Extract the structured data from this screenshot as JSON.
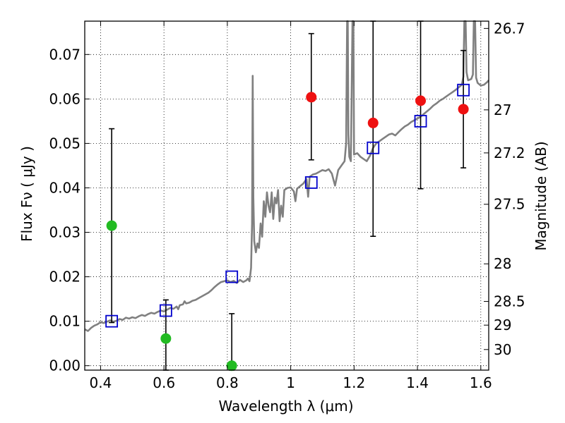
{
  "chart_data": {
    "type": "scatter",
    "xlabel": "Wavelength  λ (μm)",
    "ylabel": "Flux  Fν  ( μJy )",
    "y2label": "Magnitude (AB)",
    "xlim": [
      0.35,
      1.625
    ],
    "ylim": [
      -0.001,
      0.0775
    ],
    "grid": true,
    "x_ticks": [
      {
        "value": 0.4,
        "label": "0.4"
      },
      {
        "value": 0.6,
        "label": "0.6"
      },
      {
        "value": 0.8,
        "label": "0.8"
      },
      {
        "value": 1.0,
        "label": "1"
      },
      {
        "value": 1.2,
        "label": "1.2"
      },
      {
        "value": 1.4,
        "label": "1.4"
      },
      {
        "value": 1.6,
        "label": "1.6"
      }
    ],
    "y_ticks": [
      {
        "value": 0.0,
        "label": "0.00"
      },
      {
        "value": 0.01,
        "label": "0.01"
      },
      {
        "value": 0.02,
        "label": "0.02"
      },
      {
        "value": 0.03,
        "label": "0.03"
      },
      {
        "value": 0.04,
        "label": "0.04"
      },
      {
        "value": 0.05,
        "label": "0.05"
      },
      {
        "value": 0.06,
        "label": "0.06"
      },
      {
        "value": 0.07,
        "label": "0.07"
      }
    ],
    "y2_ticks": [
      {
        "magnitude": 26.7,
        "label": "26.7"
      },
      {
        "magnitude": 27.0,
        "label": "27"
      },
      {
        "magnitude": 27.2,
        "label": "27.2"
      },
      {
        "magnitude": 27.5,
        "label": "27.5"
      },
      {
        "magnitude": 28.0,
        "label": "28"
      },
      {
        "magnitude": 28.5,
        "label": "28.5"
      },
      {
        "magnitude": 29.0,
        "label": "29"
      },
      {
        "magnitude": 30.0,
        "label": "30"
      }
    ],
    "sed_model": {
      "color": "#808080",
      "points": [
        [
          0.35,
          0.0082
        ],
        [
          0.36,
          0.0078
        ],
        [
          0.37,
          0.0085
        ],
        [
          0.38,
          0.009
        ],
        [
          0.39,
          0.0093
        ],
        [
          0.4,
          0.0098
        ],
        [
          0.41,
          0.0096
        ],
        [
          0.42,
          0.0099
        ],
        [
          0.43,
          0.0102
        ],
        [
          0.44,
          0.0099
        ],
        [
          0.45,
          0.0101
        ],
        [
          0.46,
          0.0105
        ],
        [
          0.47,
          0.0103
        ],
        [
          0.48,
          0.0108
        ],
        [
          0.49,
          0.0106
        ],
        [
          0.5,
          0.0109
        ],
        [
          0.51,
          0.0107
        ],
        [
          0.52,
          0.0111
        ],
        [
          0.53,
          0.0114
        ],
        [
          0.54,
          0.0112
        ],
        [
          0.55,
          0.0116
        ],
        [
          0.56,
          0.0119
        ],
        [
          0.57,
          0.0117
        ],
        [
          0.58,
          0.0121
        ],
        [
          0.59,
          0.0124
        ],
        [
          0.6,
          0.0122
        ],
        [
          0.61,
          0.0126
        ],
        [
          0.62,
          0.013
        ],
        [
          0.63,
          0.0128
        ],
        [
          0.64,
          0.0133
        ],
        [
          0.645,
          0.0127
        ],
        [
          0.65,
          0.0136
        ],
        [
          0.66,
          0.0138
        ],
        [
          0.665,
          0.0145
        ],
        [
          0.67,
          0.014
        ],
        [
          0.68,
          0.0142
        ],
        [
          0.69,
          0.0146
        ],
        [
          0.7,
          0.0148
        ],
        [
          0.71,
          0.0152
        ],
        [
          0.72,
          0.0156
        ],
        [
          0.73,
          0.016
        ],
        [
          0.74,
          0.0164
        ],
        [
          0.75,
          0.017
        ],
        [
          0.76,
          0.0177
        ],
        [
          0.77,
          0.0183
        ],
        [
          0.78,
          0.0188
        ],
        [
          0.79,
          0.019
        ],
        [
          0.8,
          0.0192
        ],
        [
          0.81,
          0.0188
        ],
        [
          0.82,
          0.0191
        ],
        [
          0.83,
          0.0186
        ],
        [
          0.84,
          0.0193
        ],
        [
          0.85,
          0.0188
        ],
        [
          0.86,
          0.0192
        ],
        [
          0.865,
          0.0196
        ],
        [
          0.87,
          0.019
        ],
        [
          0.875,
          0.022
        ],
        [
          0.878,
          0.032
        ],
        [
          0.88,
          0.0652
        ],
        [
          0.882,
          0.038
        ],
        [
          0.885,
          0.028
        ],
        [
          0.89,
          0.0255
        ],
        [
          0.895,
          0.0275
        ],
        [
          0.9,
          0.0265
        ],
        [
          0.905,
          0.032
        ],
        [
          0.91,
          0.029
        ],
        [
          0.915,
          0.037
        ],
        [
          0.92,
          0.0335
        ],
        [
          0.925,
          0.039
        ],
        [
          0.93,
          0.036
        ],
        [
          0.935,
          0.0345
        ],
        [
          0.94,
          0.039
        ],
        [
          0.945,
          0.033
        ],
        [
          0.95,
          0.0378
        ],
        [
          0.955,
          0.0365
        ],
        [
          0.96,
          0.0395
        ],
        [
          0.965,
          0.0325
        ],
        [
          0.97,
          0.036
        ],
        [
          0.975,
          0.0335
        ],
        [
          0.98,
          0.0395
        ],
        [
          0.99,
          0.04
        ],
        [
          1.0,
          0.0401
        ],
        [
          1.01,
          0.0392
        ],
        [
          1.015,
          0.037
        ],
        [
          1.02,
          0.0398
        ],
        [
          1.03,
          0.0404
        ],
        [
          1.04,
          0.041
        ],
        [
          1.05,
          0.042
        ],
        [
          1.055,
          0.038
        ],
        [
          1.06,
          0.0425
        ],
        [
          1.07,
          0.043
        ],
        [
          1.08,
          0.0432
        ],
        [
          1.09,
          0.0436
        ],
        [
          1.1,
          0.044
        ],
        [
          1.11,
          0.0438
        ],
        [
          1.12,
          0.0442
        ],
        [
          1.13,
          0.0432
        ],
        [
          1.14,
          0.0405
        ],
        [
          1.15,
          0.044
        ],
        [
          1.16,
          0.045
        ],
        [
          1.17,
          0.046
        ],
        [
          1.175,
          0.05
        ],
        [
          1.178,
          0.0775
        ],
        [
          1.18,
          0.0775
        ],
        [
          1.182,
          0.052
        ],
        [
          1.185,
          0.047
        ],
        [
          1.19,
          0.046
        ],
        [
          1.195,
          0.0775
        ],
        [
          1.198,
          0.0775
        ],
        [
          1.2,
          0.0475
        ],
        [
          1.21,
          0.0478
        ],
        [
          1.22,
          0.047
        ],
        [
          1.23,
          0.0465
        ],
        [
          1.24,
          0.046
        ],
        [
          1.25,
          0.0472
        ],
        [
          1.26,
          0.049
        ],
        [
          1.27,
          0.05
        ],
        [
          1.28,
          0.0505
        ],
        [
          1.29,
          0.051
        ],
        [
          1.3,
          0.0515
        ],
        [
          1.31,
          0.052
        ],
        [
          1.32,
          0.0522
        ],
        [
          1.33,
          0.0518
        ],
        [
          1.34,
          0.0525
        ],
        [
          1.35,
          0.0532
        ],
        [
          1.36,
          0.0538
        ],
        [
          1.37,
          0.0542
        ],
        [
          1.38,
          0.0548
        ],
        [
          1.39,
          0.0552
        ],
        [
          1.4,
          0.0556
        ],
        [
          1.41,
          0.056
        ],
        [
          1.42,
          0.0566
        ],
        [
          1.43,
          0.0572
        ],
        [
          1.44,
          0.0578
        ],
        [
          1.45,
          0.0585
        ],
        [
          1.46,
          0.059
        ],
        [
          1.47,
          0.0596
        ],
        [
          1.48,
          0.06
        ],
        [
          1.49,
          0.0605
        ],
        [
          1.5,
          0.061
        ],
        [
          1.51,
          0.0615
        ],
        [
          1.52,
          0.062
        ],
        [
          1.53,
          0.0626
        ],
        [
          1.54,
          0.0632
        ],
        [
          1.545,
          0.065
        ],
        [
          1.548,
          0.0775
        ],
        [
          1.552,
          0.0775
        ],
        [
          1.555,
          0.066
        ],
        [
          1.56,
          0.0642
        ],
        [
          1.57,
          0.0645
        ],
        [
          1.575,
          0.0655
        ],
        [
          1.578,
          0.0775
        ],
        [
          1.582,
          0.0775
        ],
        [
          1.585,
          0.0648
        ],
        [
          1.59,
          0.0636
        ],
        [
          1.6,
          0.063
        ],
        [
          1.61,
          0.0632
        ],
        [
          1.62,
          0.0638
        ],
        [
          1.625,
          0.0642
        ]
      ]
    },
    "model_photometry": {
      "marker": "open-square",
      "color": "#0000cc",
      "points": [
        [
          0.435,
          0.01
        ],
        [
          0.606,
          0.0124
        ],
        [
          0.814,
          0.02
        ],
        [
          1.065,
          0.0412
        ],
        [
          1.26,
          0.049
        ],
        [
          1.41,
          0.055
        ],
        [
          1.545,
          0.062
        ]
      ]
    },
    "observed_green": {
      "marker": "filled-circle",
      "color": "#22bb22",
      "points": [
        {
          "x": 0.435,
          "y": 0.0315,
          "yerr_low": 0.0097,
          "yerr_high": 0.0533
        },
        {
          "x": 0.606,
          "y": 0.0061,
          "yerr_low": -0.001,
          "yerr_high": 0.0148
        },
        {
          "x": 0.814,
          "y": 0.0,
          "yerr_low": -0.001,
          "yerr_high": 0.0117
        }
      ]
    },
    "observed_red": {
      "marker": "filled-circle",
      "color": "#ee1111",
      "points": [
        {
          "x": 1.065,
          "y": 0.0604,
          "yerr_low": 0.0463,
          "yerr_high": 0.0747
        },
        {
          "x": 1.26,
          "y": 0.0546,
          "yerr_low": 0.0291,
          "yerr_high": 0.0775
        },
        {
          "x": 1.41,
          "y": 0.0596,
          "yerr_low": 0.0398,
          "yerr_high": 0.0775
        },
        {
          "x": 1.545,
          "y": 0.0577,
          "yerr_low": 0.0445,
          "yerr_high": 0.0709
        }
      ]
    }
  }
}
